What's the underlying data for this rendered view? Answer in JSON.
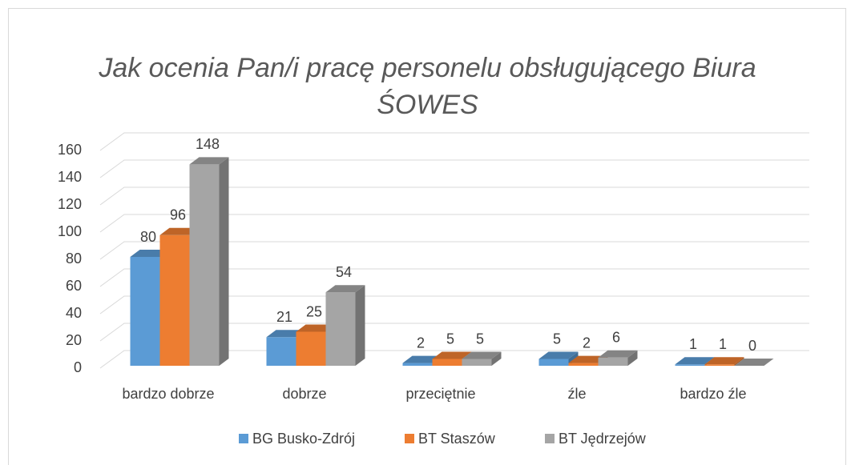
{
  "chart_data": {
    "type": "bar3d",
    "title": "Jak ocenia Pan/i pracę personelu obsługującego Biura ŚOWES",
    "categories": [
      "bardzo dobrze",
      "dobrze",
      "przeciętnie",
      "źle",
      "bardzo źle"
    ],
    "series": [
      {
        "name": "BG Busko-Zdrój",
        "color": "#5b9bd5",
        "values": [
          80,
          21,
          2,
          5,
          1
        ]
      },
      {
        "name": "BT Staszów",
        "color": "#ed7d31",
        "values": [
          96,
          25,
          5,
          2,
          1
        ]
      },
      {
        "name": "BT Jędrzejów",
        "color": "#a5a5a5",
        "values": [
          148,
          54,
          5,
          6,
          0
        ]
      }
    ],
    "ylim": [
      0,
      160
    ],
    "yticks": [
      0,
      20,
      40,
      60,
      80,
      100,
      120,
      140,
      160
    ],
    "grid": true,
    "legend": "bottom"
  }
}
